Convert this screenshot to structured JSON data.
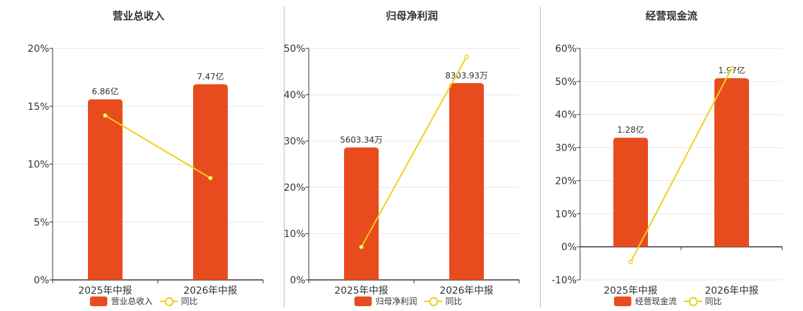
{
  "colors": {
    "bar": "#e84c1e",
    "line": "#f0d01a",
    "axis": "#333333",
    "grid": "#e6e6e6"
  },
  "legend": {
    "line_label": "同比"
  },
  "chart_data": [
    {
      "type": "bar",
      "title": "营业总收入",
      "categories": [
        "2025年中报",
        "2026年中报"
      ],
      "series": [
        {
          "name": "营业总收入",
          "type": "bar",
          "values": [
            15.6,
            16.9
          ],
          "labels": [
            "6.86亿",
            "7.47亿"
          ]
        },
        {
          "name": "同比",
          "type": "line",
          "values": [
            14.2,
            8.8
          ]
        }
      ],
      "yticks": [
        "0%",
        "5%",
        "10%",
        "15%",
        "20%"
      ],
      "ylim": [
        0,
        20
      ],
      "unit": "%"
    },
    {
      "type": "bar",
      "title": "归母净利润",
      "categories": [
        "2025年中报",
        "2026年中报"
      ],
      "series": [
        {
          "name": "归母净利润",
          "type": "bar",
          "values": [
            28.6,
            42.5
          ],
          "labels": [
            "5603.34万",
            "8303.93万"
          ]
        },
        {
          "name": "同比",
          "type": "line",
          "values": [
            7.1,
            48.2
          ]
        }
      ],
      "yticks": [
        "0%",
        "10%",
        "20%",
        "30%",
        "40%",
        "50%"
      ],
      "ylim": [
        0,
        50
      ],
      "unit": "%"
    },
    {
      "type": "bar",
      "title": "经营现金流",
      "categories": [
        "2025年中报",
        "2026年中报"
      ],
      "series": [
        {
          "name": "经营现金流",
          "type": "bar",
          "values": [
            33.0,
            51.0
          ],
          "labels": [
            "1.28亿",
            "1.97亿"
          ]
        },
        {
          "name": "同比",
          "type": "line",
          "values": [
            -4.6,
            54.0
          ]
        }
      ],
      "yticks": [
        "-10%",
        "0%",
        "10%",
        "20%",
        "30%",
        "40%",
        "50%",
        "60%"
      ],
      "ylim": [
        -10,
        60
      ],
      "unit": "%"
    }
  ]
}
